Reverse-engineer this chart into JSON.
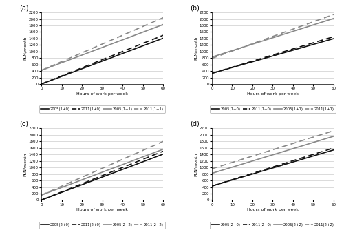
{
  "hours": [
    0,
    5,
    10,
    15,
    20,
    25,
    30,
    35,
    40,
    45,
    50,
    55,
    60
  ],
  "subplot_titles": [
    "(a)",
    "(b)",
    "(c)",
    "(d)"
  ],
  "ylabel": "PLN/month",
  "xlabel": "Hours of work per week",
  "ylim": [
    0,
    2200
  ],
  "xlim": [
    0,
    60
  ],
  "xticks": [
    0,
    10,
    20,
    30,
    40,
    50,
    60
  ],
  "yticks": [
    0,
    200,
    400,
    600,
    800,
    1000,
    1200,
    1400,
    1600,
    1800,
    2000,
    2200
  ],
  "panel_a": {
    "legend_labels": [
      "2005(1+0)",
      "2011(1+0)",
      "2005(1+1)",
      "2011(1+1)"
    ],
    "lines": [
      {
        "y0": 0,
        "slope": 23.5,
        "color": "#111111",
        "linestyle": "solid",
        "lw": 1.2
      },
      {
        "y0": 0,
        "slope": 25.0,
        "color": "#111111",
        "linestyle": "dashed",
        "lw": 1.2
      },
      {
        "y0": 420,
        "slope": 23.5,
        "color": "#888888",
        "linestyle": "solid",
        "lw": 1.2
      },
      {
        "y0": 420,
        "slope": 27.0,
        "color": "#888888",
        "linestyle": "dashed",
        "lw": 1.2
      }
    ]
  },
  "panel_b": {
    "legend_labels": [
      "2005(1+0)",
      "2011(1+0)",
      "2005(1+1)",
      "2011(1+1)"
    ],
    "lines": [
      {
        "y0": 330,
        "slope": 17.8,
        "color": "#111111",
        "linestyle": "solid",
        "lw": 1.2
      },
      {
        "y0": 330,
        "slope": 18.8,
        "color": "#111111",
        "linestyle": "dashed",
        "lw": 1.2
      },
      {
        "y0": 830,
        "slope": 19.8,
        "color": "#888888",
        "linestyle": "solid",
        "lw": 1.2
      },
      {
        "y0": 790,
        "slope": 22.5,
        "color": "#888888",
        "linestyle": "dashed",
        "lw": 1.2
      }
    ]
  },
  "panel_c": {
    "legend_labels": [
      "2005(2+0)",
      "2011(2+0)",
      "2005(2+2)",
      "2011(2+2)"
    ],
    "lines": [
      {
        "y0": 0,
        "slope": 23.5,
        "color": "#111111",
        "linestyle": "solid",
        "lw": 1.2
      },
      {
        "y0": 0,
        "slope": 25.0,
        "color": "#111111",
        "linestyle": "dashed",
        "lw": 1.2
      },
      {
        "y0": 150,
        "slope": 23.5,
        "color": "#888888",
        "linestyle": "solid",
        "lw": 1.2
      },
      {
        "y0": 150,
        "slope": 27.5,
        "color": "#888888",
        "linestyle": "dashed",
        "lw": 1.2
      }
    ]
  },
  "panel_d": {
    "legend_labels": [
      "2005(2+0)",
      "2011(2+0)",
      "2005(2+2)",
      "2011(2+2)"
    ],
    "lines": [
      {
        "y0": 430,
        "slope": 18.5,
        "color": "#111111",
        "linestyle": "solid",
        "lw": 1.2
      },
      {
        "y0": 430,
        "slope": 19.5,
        "color": "#111111",
        "linestyle": "dashed",
        "lw": 1.2
      },
      {
        "y0": 820,
        "slope": 19.0,
        "color": "#888888",
        "linestyle": "solid",
        "lw": 1.2
      },
      {
        "y0": 960,
        "slope": 19.5,
        "color": "#888888",
        "linestyle": "dashed",
        "lw": 1.2
      }
    ]
  },
  "background_color": "#ffffff",
  "grid_color": "#cccccc"
}
